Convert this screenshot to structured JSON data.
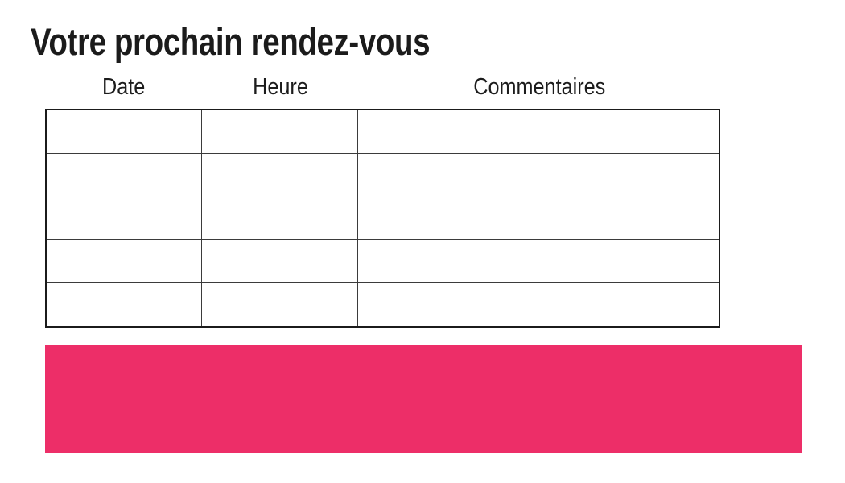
{
  "page": {
    "title": "Votre prochain rendez-vous",
    "background_color": "#ffffff",
    "title_color": "#1b1b1b"
  },
  "appointments_table": {
    "columns": [
      {
        "key": "date",
        "label": "Date"
      },
      {
        "key": "heure",
        "label": "Heure"
      },
      {
        "key": "commentaires",
        "label": "Commentaires"
      }
    ],
    "rows": [
      {
        "date": "",
        "heure": "",
        "commentaires": ""
      },
      {
        "date": "",
        "heure": "",
        "commentaires": ""
      },
      {
        "date": "",
        "heure": "",
        "commentaires": ""
      },
      {
        "date": "",
        "heure": "",
        "commentaires": ""
      },
      {
        "date": "",
        "heure": "",
        "commentaires": ""
      }
    ],
    "border_color": "#1b1b1b"
  },
  "banner": {
    "text": "",
    "color": "#ED2E68"
  }
}
